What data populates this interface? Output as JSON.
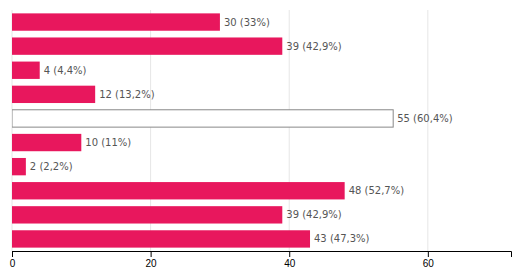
{
  "chart_data": {
    "type": "bar",
    "orientation": "horizontal",
    "categories": [
      null,
      null,
      null,
      null,
      null,
      null,
      null,
      null,
      null,
      null
    ],
    "values": [
      30,
      39,
      4,
      12,
      55,
      10,
      2,
      48,
      39,
      43
    ],
    "value_labels": [
      "30 (33%)",
      "39 (42,9%)",
      "4 (4,4%)",
      "12 (13,2%)",
      "55 (60,4%)",
      "10 (11%)",
      "2 (2,2%)",
      "48 (52,7%)",
      "39 (42,9%)",
      "43 (47,3%)"
    ],
    "colors": [
      "#E8175D",
      "#E8175D",
      "#E8175D",
      "#E8175D",
      "#ffffff",
      "#E8175D",
      "#E8175D",
      "#E8175D",
      "#E8175D",
      "#E8175D"
    ],
    "data_labels": true,
    "xlim": [
      0,
      72
    ],
    "xticks": [
      0,
      20,
      40,
      60
    ],
    "grid": true,
    "tick_labels": "x"
  }
}
